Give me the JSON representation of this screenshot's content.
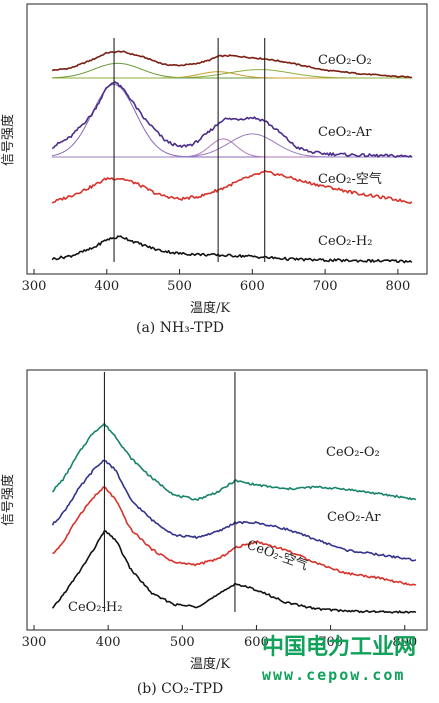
{
  "chart_data": [
    {
      "type": "line",
      "caption": "(a) NH₃-TPD",
      "xlabel": "温度/K",
      "ylabel": "信号强度",
      "xlim": [
        300,
        840
      ],
      "xticks": [
        300,
        400,
        500,
        600,
        700,
        800
      ],
      "vlines": [
        410,
        553,
        617
      ],
      "series": [
        {
          "name": "CeO₂-O₂",
          "color": "#7a1f12",
          "x": [
            325,
            350,
            380,
            400,
            420,
            450,
            480,
            500,
            520,
            540,
            553,
            570,
            600,
            620,
            650,
            700,
            750,
            800,
            820
          ],
          "y": [
            0.55,
            0.7,
            1.3,
            1.8,
            1.9,
            1.5,
            0.95,
            0.9,
            1.0,
            1.25,
            1.55,
            1.6,
            1.45,
            1.35,
            1.1,
            0.55,
            0.3,
            0.1,
            0.05
          ]
        },
        {
          "name": "CeO₂-Ar",
          "color": "#4b2e8a",
          "x": [
            325,
            350,
            380,
            400,
            410,
            425,
            450,
            480,
            500,
            520,
            540,
            560,
            580,
            600,
            617,
            640,
            660,
            680,
            700,
            750,
            800,
            820
          ],
          "y": [
            0.3,
            0.6,
            1.3,
            2.1,
            2.3,
            2.0,
            1.2,
            0.5,
            0.3,
            0.4,
            0.75,
            1.15,
            1.15,
            1.2,
            1.1,
            0.7,
            0.3,
            0.15,
            0.1,
            0.05,
            0.03,
            0.02
          ]
        },
        {
          "name": "CeO₂-空气",
          "color": "#d8322a",
          "x": [
            325,
            350,
            380,
            400,
            420,
            440,
            470,
            500,
            530,
            560,
            590,
            617,
            640,
            670,
            700,
            740,
            780,
            820
          ],
          "y": [
            0.3,
            0.5,
            0.8,
            1.05,
            1.05,
            0.9,
            0.55,
            0.4,
            0.5,
            0.75,
            1.05,
            1.25,
            1.15,
            0.95,
            0.8,
            0.6,
            0.45,
            0.3
          ]
        },
        {
          "name": "CeO₂-H₂",
          "color": "#111111",
          "x": [
            325,
            350,
            380,
            400,
            420,
            440,
            470,
            500,
            530,
            560,
            590,
            620,
            650,
            700,
            750,
            800,
            820
          ],
          "y": [
            0.1,
            0.2,
            0.45,
            0.75,
            0.85,
            0.65,
            0.4,
            0.28,
            0.25,
            0.22,
            0.2,
            0.15,
            0.1,
            0.06,
            0.04,
            0.03,
            0.02
          ]
        }
      ],
      "fit_peaks": [
        {
          "series": "CeO₂-O₂",
          "components": [
            {
              "center": 415,
              "height": 1.05,
              "width": 32
            },
            {
              "center": 553,
              "height": 0.45,
              "width": 25
            },
            {
              "center": 610,
              "height": 0.6,
              "width": 42
            }
          ]
        },
        {
          "series": "CeO₂-Ar",
          "components": [
            {
              "center": 410,
              "height": 2.2,
              "width": 30
            },
            {
              "center": 560,
              "height": 0.55,
              "width": 18
            },
            {
              "center": 600,
              "height": 0.7,
              "width": 32
            }
          ]
        }
      ]
    },
    {
      "type": "line",
      "caption": "(b) CO₂-TPD",
      "xlabel": "温度/K",
      "ylabel": "信号强度",
      "xlim": [
        300,
        830
      ],
      "xticks": [
        300,
        400,
        500,
        600,
        700,
        800
      ],
      "vlines": [
        395,
        571
      ],
      "series": [
        {
          "name": "CeO₂-O₂",
          "color": "#17836a",
          "x": [
            325,
            340,
            360,
            380,
            395,
            410,
            430,
            460,
            490,
            520,
            550,
            571,
            600,
            640,
            680,
            720,
            760,
            800,
            815
          ],
          "y": [
            2.9,
            3.2,
            3.8,
            4.3,
            4.5,
            4.2,
            3.7,
            3.2,
            2.8,
            2.7,
            2.9,
            3.15,
            3.05,
            2.95,
            3.0,
            2.95,
            2.85,
            2.75,
            2.7
          ]
        },
        {
          "name": "CeO₂-Ar",
          "color": "#33338c",
          "x": [
            325,
            340,
            360,
            380,
            395,
            410,
            430,
            460,
            490,
            520,
            550,
            571,
            600,
            640,
            680,
            720,
            760,
            800,
            815
          ],
          "y": [
            2.1,
            2.4,
            2.95,
            3.4,
            3.65,
            3.4,
            2.7,
            2.2,
            1.85,
            1.8,
            1.95,
            2.15,
            2.15,
            2.0,
            1.75,
            1.5,
            1.4,
            1.3,
            1.25
          ]
        },
        {
          "name": "CeO₂-空气",
          "color": "#d8322a",
          "x": [
            325,
            340,
            360,
            380,
            395,
            410,
            430,
            460,
            490,
            520,
            550,
            571,
            600,
            640,
            680,
            720,
            760,
            800,
            815
          ],
          "y": [
            1.4,
            1.7,
            2.3,
            2.75,
            3.0,
            2.7,
            2.0,
            1.5,
            1.2,
            1.15,
            1.3,
            1.55,
            1.7,
            1.5,
            1.2,
            0.95,
            0.85,
            0.7,
            0.65
          ]
        },
        {
          "name": "CeO₂-H₂",
          "color": "#111111",
          "x": [
            325,
            340,
            360,
            380,
            395,
            410,
            430,
            460,
            490,
            520,
            550,
            571,
            600,
            640,
            680,
            720,
            760,
            800,
            815
          ],
          "y": [
            0.1,
            0.45,
            0.95,
            1.5,
            1.95,
            1.75,
            1.05,
            0.45,
            0.2,
            0.15,
            0.45,
            0.7,
            0.55,
            0.25,
            0.1,
            0.05,
            0.03,
            0.02,
            0.01
          ]
        }
      ]
    }
  ],
  "watermark": {
    "line1": "中国电力工业网",
    "line2": "www.cepow.com"
  }
}
